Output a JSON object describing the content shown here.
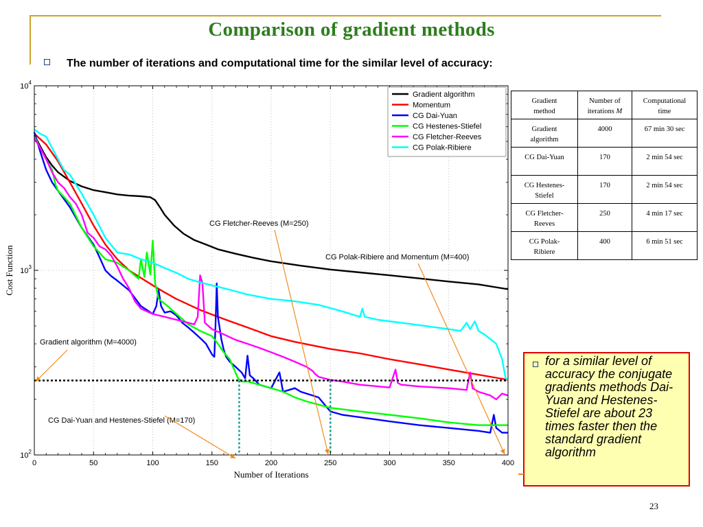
{
  "slide": {
    "title": "Comparison of  gradient methods",
    "bullet": "The number of iterations and computational time for the similar level of accuracy:",
    "page_number": "23"
  },
  "colors": {
    "title": "#2e7d1e",
    "border_gold": "#c9a227",
    "note_background": "#ffffb2",
    "note_border": "#e00000",
    "arrow": "#f08a1c"
  },
  "chart_data": {
    "type": "line",
    "xlabel": "Number of Iterations",
    "ylabel": "Cost Function",
    "xlim": [
      0,
      400
    ],
    "ylim": [
      100,
      10000
    ],
    "yscale": "log",
    "grid": "dotted",
    "legend_position": "top-right",
    "x_ticks": [
      "0",
      "50",
      "100",
      "150",
      "200",
      "250",
      "300",
      "350",
      "400"
    ],
    "y_ticks": [
      {
        "base": "10",
        "exp": "2"
      },
      {
        "base": "10",
        "exp": "3"
      },
      {
        "base": "10",
        "exp": "4"
      }
    ],
    "threshold": {
      "y": 253
    },
    "vlines": [
      {
        "x": 173
      },
      {
        "x": 250
      }
    ],
    "series": [
      {
        "name": "Gradient algorithm",
        "color": "#000000",
        "points": [
          [
            0,
            5400
          ],
          [
            5,
            4700
          ],
          [
            10,
            4100
          ],
          [
            15,
            3700
          ],
          [
            20,
            3400
          ],
          [
            30,
            3050
          ],
          [
            40,
            2850
          ],
          [
            50,
            2720
          ],
          [
            60,
            2650
          ],
          [
            70,
            2580
          ],
          [
            80,
            2540
          ],
          [
            90,
            2520
          ],
          [
            98,
            2490
          ],
          [
            102,
            2400
          ],
          [
            106,
            2200
          ],
          [
            110,
            2000
          ],
          [
            118,
            1750
          ],
          [
            126,
            1580
          ],
          [
            135,
            1460
          ],
          [
            145,
            1380
          ],
          [
            155,
            1300
          ],
          [
            170,
            1230
          ],
          [
            185,
            1170
          ],
          [
            200,
            1120
          ],
          [
            225,
            1060
          ],
          [
            250,
            1010
          ],
          [
            275,
            975
          ],
          [
            300,
            940
          ],
          [
            325,
            905
          ],
          [
            350,
            870
          ],
          [
            375,
            840
          ],
          [
            400,
            790
          ]
        ]
      },
      {
        "name": "Momentum",
        "color": "#ff0000",
        "points": [
          [
            0,
            5500
          ],
          [
            10,
            4800
          ],
          [
            20,
            3900
          ],
          [
            30,
            3000
          ],
          [
            40,
            2300
          ],
          [
            50,
            1750
          ],
          [
            60,
            1380
          ],
          [
            70,
            1150
          ],
          [
            80,
            1000
          ],
          [
            90,
            910
          ],
          [
            100,
            830
          ],
          [
            110,
            760
          ],
          [
            120,
            700
          ],
          [
            140,
            610
          ],
          [
            160,
            545
          ],
          [
            180,
            490
          ],
          [
            200,
            440
          ],
          [
            220,
            410
          ],
          [
            250,
            375
          ],
          [
            275,
            355
          ],
          [
            300,
            330
          ],
          [
            325,
            310
          ],
          [
            350,
            290
          ],
          [
            375,
            272
          ],
          [
            390,
            262
          ],
          [
            400,
            255
          ]
        ]
      },
      {
        "name": "CG Dai-Yuan",
        "color": "#0000ff",
        "points": [
          [
            0,
            5600
          ],
          [
            5,
            4400
          ],
          [
            10,
            3500
          ],
          [
            15,
            3000
          ],
          [
            20,
            2700
          ],
          [
            30,
            2200
          ],
          [
            40,
            1700
          ],
          [
            50,
            1380
          ],
          [
            55,
            1180
          ],
          [
            60,
            1000
          ],
          [
            65,
            930
          ],
          [
            70,
            880
          ],
          [
            80,
            780
          ],
          [
            90,
            640
          ],
          [
            95,
            610
          ],
          [
            100,
            580
          ],
          [
            103,
            640
          ],
          [
            105,
            780
          ],
          [
            107,
            640
          ],
          [
            110,
            590
          ],
          [
            115,
            600
          ],
          [
            120,
            570
          ],
          [
            125,
            520
          ],
          [
            130,
            490
          ],
          [
            135,
            460
          ],
          [
            140,
            430
          ],
          [
            145,
            400
          ],
          [
            150,
            350
          ],
          [
            152,
            340
          ],
          [
            153,
            500
          ],
          [
            154,
            850
          ],
          [
            155,
            560
          ],
          [
            158,
            420
          ],
          [
            160,
            370
          ],
          [
            162,
            340
          ],
          [
            165,
            320
          ],
          [
            170,
            300
          ],
          [
            175,
            280
          ],
          [
            178,
            260
          ],
          [
            180,
            345
          ],
          [
            182,
            270
          ],
          [
            185,
            260
          ],
          [
            190,
            240
          ],
          [
            200,
            230
          ],
          [
            205,
            265
          ],
          [
            207,
            280
          ],
          [
            210,
            220
          ],
          [
            215,
            225
          ],
          [
            220,
            230
          ],
          [
            225,
            220
          ],
          [
            240,
            205
          ],
          [
            250,
            172
          ],
          [
            260,
            165
          ],
          [
            275,
            160
          ],
          [
            300,
            152
          ],
          [
            325,
            145
          ],
          [
            350,
            140
          ],
          [
            375,
            135
          ],
          [
            385,
            132
          ],
          [
            388,
            165
          ],
          [
            390,
            140
          ],
          [
            395,
            132
          ],
          [
            400,
            132
          ]
        ]
      },
      {
        "name": "CG Hestenes-Stiefel",
        "color": "#00ff00",
        "points": [
          [
            0,
            5300
          ],
          [
            5,
            4600
          ],
          [
            10,
            4000
          ],
          [
            15,
            3500
          ],
          [
            18,
            2900
          ],
          [
            20,
            2700
          ],
          [
            25,
            2500
          ],
          [
            30,
            2300
          ],
          [
            40,
            1700
          ],
          [
            50,
            1350
          ],
          [
            60,
            1150
          ],
          [
            70,
            1100
          ],
          [
            80,
            1000
          ],
          [
            88,
            900
          ],
          [
            90,
            1150
          ],
          [
            93,
            920
          ],
          [
            95,
            1250
          ],
          [
            98,
            950
          ],
          [
            100,
            1450
          ],
          [
            102,
            850
          ],
          [
            105,
            700
          ],
          [
            110,
            660
          ],
          [
            115,
            620
          ],
          [
            120,
            580
          ],
          [
            130,
            510
          ],
          [
            140,
            470
          ],
          [
            150,
            440
          ],
          [
            155,
            400
          ],
          [
            160,
            360
          ],
          [
            165,
            330
          ],
          [
            172,
            260
          ],
          [
            175,
            250
          ],
          [
            180,
            250
          ],
          [
            190,
            240
          ],
          [
            200,
            230
          ],
          [
            210,
            220
          ],
          [
            220,
            205
          ],
          [
            230,
            195
          ],
          [
            250,
            180
          ],
          [
            275,
            172
          ],
          [
            300,
            165
          ],
          [
            325,
            158
          ],
          [
            350,
            150
          ],
          [
            375,
            145
          ],
          [
            400,
            145
          ]
        ]
      },
      {
        "name": "CG Fletcher-Reeves",
        "color": "#ff00ff",
        "points": [
          [
            0,
            5200
          ],
          [
            5,
            4600
          ],
          [
            10,
            4000
          ],
          [
            15,
            3400
          ],
          [
            20,
            3000
          ],
          [
            25,
            2800
          ],
          [
            30,
            2500
          ],
          [
            35,
            2300
          ],
          [
            40,
            2000
          ],
          [
            45,
            1600
          ],
          [
            50,
            1500
          ],
          [
            55,
            1350
          ],
          [
            60,
            1300
          ],
          [
            65,
            1200
          ],
          [
            70,
            1050
          ],
          [
            75,
            900
          ],
          [
            80,
            800
          ],
          [
            85,
            680
          ],
          [
            90,
            620
          ],
          [
            100,
            580
          ],
          [
            110,
            560
          ],
          [
            120,
            540
          ],
          [
            130,
            520
          ],
          [
            135,
            510
          ],
          [
            138,
            560
          ],
          [
            140,
            940
          ],
          [
            142,
            850
          ],
          [
            144,
            520
          ],
          [
            150,
            480
          ],
          [
            160,
            450
          ],
          [
            170,
            420
          ],
          [
            180,
            400
          ],
          [
            190,
            380
          ],
          [
            200,
            360
          ],
          [
            210,
            340
          ],
          [
            220,
            320
          ],
          [
            230,
            300
          ],
          [
            235,
            285
          ],
          [
            237,
            275
          ],
          [
            240,
            265
          ],
          [
            250,
            255
          ],
          [
            260,
            250
          ],
          [
            275,
            240
          ],
          [
            300,
            232
          ],
          [
            305,
            290
          ],
          [
            307,
            245
          ],
          [
            310,
            240
          ],
          [
            325,
            235
          ],
          [
            350,
            230
          ],
          [
            365,
            225
          ],
          [
            368,
            280
          ],
          [
            370,
            230
          ],
          [
            375,
            220
          ],
          [
            385,
            210
          ],
          [
            390,
            200
          ],
          [
            395,
            215
          ],
          [
            400,
            210
          ]
        ]
      },
      {
        "name": "CG Polak-Ribiere",
        "color": "#00ffff",
        "points": [
          [
            0,
            5800
          ],
          [
            5,
            5500
          ],
          [
            10,
            5300
          ],
          [
            15,
            4600
          ],
          [
            20,
            4000
          ],
          [
            25,
            3500
          ],
          [
            30,
            3300
          ],
          [
            40,
            2600
          ],
          [
            50,
            2000
          ],
          [
            60,
            1500
          ],
          [
            70,
            1250
          ],
          [
            80,
            1220
          ],
          [
            90,
            1150
          ],
          [
            100,
            1100
          ],
          [
            110,
            1030
          ],
          [
            120,
            970
          ],
          [
            130,
            900
          ],
          [
            140,
            860
          ],
          [
            150,
            830
          ],
          [
            160,
            800
          ],
          [
            170,
            770
          ],
          [
            180,
            740
          ],
          [
            190,
            720
          ],
          [
            200,
            700
          ],
          [
            210,
            690
          ],
          [
            220,
            680
          ],
          [
            240,
            650
          ],
          [
            260,
            600
          ],
          [
            275,
            560
          ],
          [
            277,
            620
          ],
          [
            279,
            560
          ],
          [
            290,
            540
          ],
          [
            310,
            520
          ],
          [
            330,
            500
          ],
          [
            350,
            480
          ],
          [
            360,
            470
          ],
          [
            365,
            520
          ],
          [
            368,
            480
          ],
          [
            372,
            530
          ],
          [
            375,
            470
          ],
          [
            380,
            450
          ],
          [
            390,
            400
          ],
          [
            395,
            330
          ],
          [
            398,
            260
          ],
          [
            400,
            255
          ]
        ]
      }
    ],
    "annotations": [
      {
        "text": "CG Fletcher-Reeves (M=250)"
      },
      {
        "text": "CG Polak-Ribiere and Momentum (M=400)"
      },
      {
        "text": "Gradient algorithm (M=4000)"
      },
      {
        "text": "CG Dai-Yuan and Hestenes-Stiefel (M=170)"
      }
    ]
  },
  "table": {
    "headers": [
      [
        "Gradient",
        "method"
      ],
      [
        "Number of",
        "iterations",
        "M"
      ],
      [
        "Computational",
        "time"
      ]
    ],
    "rows": [
      {
        "method": [
          "Gradient",
          "algorithm"
        ],
        "iterations": "4000",
        "time": "67 min 30 sec"
      },
      {
        "method": [
          "CG Dai-Yuan"
        ],
        "iterations": "170",
        "time": "2 min 54 sec"
      },
      {
        "method": [
          "CG Hestenes-",
          "Stiefel"
        ],
        "iterations": "170",
        "time": "2 min 54 sec"
      },
      {
        "method": [
          "CG Fletcher-",
          "Reeves"
        ],
        "iterations": "250",
        "time": "4 min 17 sec"
      },
      {
        "method": [
          "CG Polak-",
          "Ribiere"
        ],
        "iterations": "400",
        "time": "6 min 51 sec"
      }
    ]
  },
  "note": {
    "text": "for a similar level of accuracy the conjugate gradients methods Dai-Yuan and Hestenes-Stiefel are about 23 times faster then the standard gradient algorithm"
  }
}
